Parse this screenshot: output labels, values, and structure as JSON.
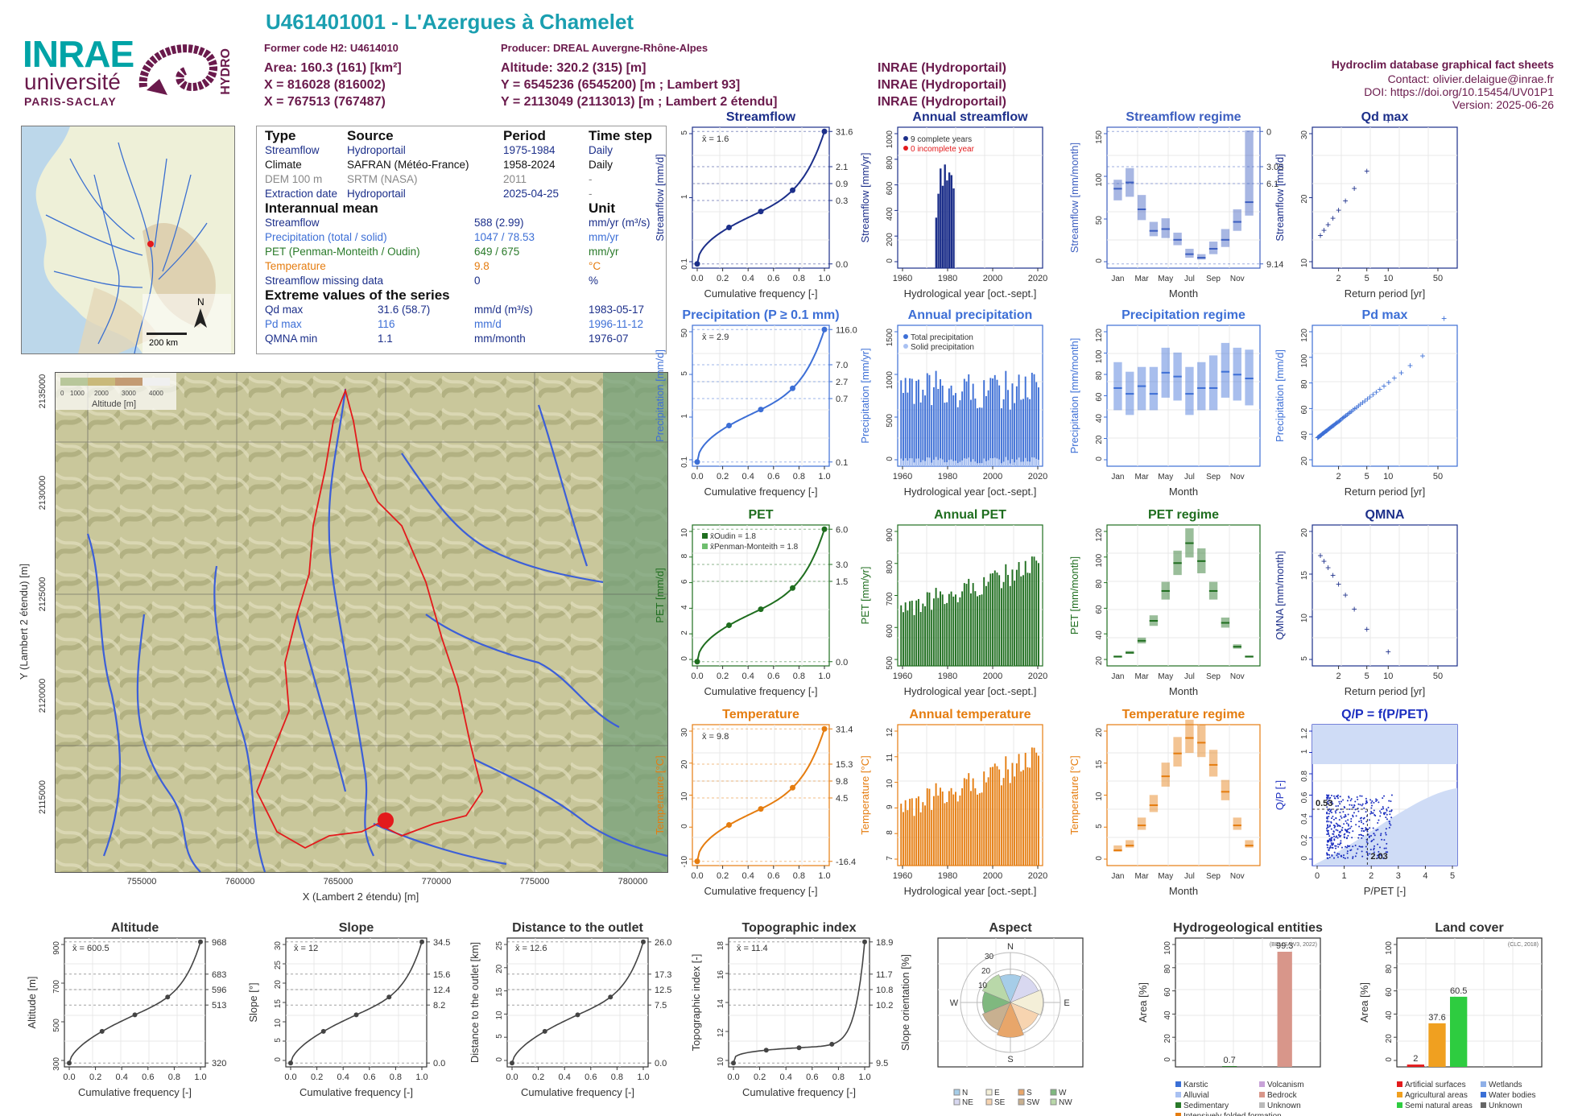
{
  "header": {
    "title": "U461401001 - L'Azergues à Chamelet",
    "former_code": "Former code H2: U4614010",
    "producer": "Producer: DREAL Auvergne-Rhône-Alpes",
    "area": "Area: 160.3 (161) [km²]",
    "altitude": "Altitude: 320.2 (315) [m]",
    "x93": "X = 816028 (816002)",
    "y93": "Y = 6545236 (6545200) [m ; Lambert 93]",
    "x2": "X = 767513 (767487)",
    "y2": "Y = 2113049 (2113013) [m ; Lambert 2 étendu]",
    "src1": "INRAE (Hydroportail)",
    "src2": "INRAE (Hydroportail)",
    "src3": "INRAE (Hydroportail)",
    "db": "Hydroclim database graphical fact sheets",
    "contact": "Contact: olivier.delaigue@inrae.fr",
    "doi": "DOI: https://doi.org/10.15454/UV01P1",
    "version": "Version: 2025-06-26"
  },
  "logos": {
    "inrae": "INRAE",
    "univ": "université",
    "paris": "PARIS-SACLAY",
    "hydro": "HYDRO"
  },
  "info": {
    "h_type": "Type",
    "h_source": "Source",
    "h_period": "Period",
    "h_timestep": "Time step",
    "rows": [
      {
        "type": "Streamflow",
        "source": "Hydroportail",
        "period": "1975-1984",
        "step": "Daily"
      },
      {
        "type": "Climate",
        "source": "SAFRAN (Météo-France)",
        "period": "1958-2024",
        "step": "Daily"
      },
      {
        "type": "DEM 100 m",
        "source": "SRTM (NASA)",
        "period": "2011",
        "step": "-"
      },
      {
        "type": "Extraction date",
        "source": "Hydroportail",
        "period": "2025-04-25",
        "step": "-"
      }
    ],
    "h_mean": "Interannual mean",
    "h_unit": "Unit",
    "mean": [
      {
        "name": "Streamflow",
        "value": "588 (2.99)",
        "unit": "mm/yr (m³/s)"
      },
      {
        "name": "Precipitation (total / solid)",
        "value": "1047 / 78.53",
        "unit": "mm/yr"
      },
      {
        "name": "PET (Penman-Monteith / Oudin)",
        "value": "649 / 675",
        "unit": "mm/yr"
      },
      {
        "name": "Temperature",
        "value": "9.8",
        "unit": "°C"
      },
      {
        "name": "Streamflow missing data",
        "value": "0",
        "unit": "%"
      }
    ],
    "h_extreme": "Extreme values of the series",
    "extreme": [
      {
        "name": "Qd max",
        "value": "31.6 (58.7)",
        "unit": "mm/d (m³/s)",
        "date": "1983-05-17"
      },
      {
        "name": "Pd max",
        "value": "116",
        "unit": "mm/d",
        "date": "1996-11-12"
      },
      {
        "name": "QMNA min",
        "value": "1.1",
        "unit": "mm/month",
        "date": "1976-07"
      }
    ]
  },
  "small_map": {
    "north": "N",
    "scale": "200 km"
  },
  "big_map": {
    "legend_title": "Altitude [m]",
    "legend_ticks": [
      "0",
      "1000",
      "2000",
      "3000",
      "4000"
    ],
    "x_ticks": [
      "755000",
      "760000",
      "765000",
      "770000",
      "775000",
      "780000"
    ],
    "y_ticks": [
      "2115000",
      "2120000",
      "2125000",
      "2130000",
      "2135000"
    ],
    "xlabel": "X (Lambert 2 étendu) [m]",
    "ylabel": "Y (Lambert 2 étendu) [m]"
  },
  "chart_data": [
    {
      "id": "streamflow",
      "type": "line",
      "title": "Streamflow",
      "ylabel": "Streamflow [mm/d]",
      "xlabel": "Cumulative frequency [-]",
      "mean_label": "x̄ = 1.6",
      "right_ticks": [
        "31.6",
        "2.1",
        "0.9",
        "0.3",
        "0.0"
      ],
      "left_ticks": [
        "0.1",
        "1",
        "5"
      ],
      "x_ticks": [
        "0.0",
        "0.2",
        "0.4",
        "0.6",
        "0.8",
        "1.0"
      ],
      "color": "#1c2f8a"
    },
    {
      "id": "annual_streamflow",
      "type": "bar",
      "title": "Annual streamflow",
      "ylabel": "Streamflow [mm/yr]",
      "xlabel": "Hydrological year [oct.-sept.]",
      "legend": [
        "9 complete years",
        "0 incomplete year"
      ],
      "x": [
        1975,
        1976,
        1977,
        1978,
        1979,
        1980,
        1981,
        1982,
        1983
      ],
      "values": [
        380,
        560,
        750,
        620,
        780,
        660,
        720,
        700,
        600
      ],
      "ylim": [
        0,
        1000
      ],
      "y_ticks": [
        "0",
        "200",
        "400",
        "600",
        "800",
        "1000"
      ],
      "x_ticks": [
        "1960",
        "1980",
        "2000",
        "2020"
      ],
      "color": "#1c2f8a"
    },
    {
      "id": "streamflow_regime",
      "type": "box",
      "title": "Streamflow regime",
      "ylabel": "Streamflow [mm/month]",
      "xlabel": "Month",
      "months": [
        "Jan",
        "Mar",
        "May",
        "Jul",
        "Sep",
        "Nov"
      ],
      "median": [
        85,
        92,
        62,
        38,
        40,
        28,
        12,
        8,
        18,
        28,
        48,
        70
      ],
      "q1": [
        72,
        76,
        50,
        32,
        30,
        22,
        8,
        6,
        12,
        20,
        38,
        55
      ],
      "q3": [
        95,
        108,
        78,
        48,
        52,
        36,
        18,
        12,
        26,
        40,
        62,
        150
      ],
      "ylim": [
        0,
        150
      ],
      "y_ticks": [
        "0",
        "50",
        "100",
        "150"
      ],
      "right_ticks": [
        "0",
        "3.05",
        "6.1",
        "9.14"
      ],
      "color": "#3d5fc0"
    },
    {
      "id": "qd_max",
      "type": "scatter",
      "title": "Qd max",
      "ylabel": "Streamflow [mm/d]",
      "xlabel": "Return period [yr]",
      "x_ticks": [
        "2",
        "5",
        "10",
        "50"
      ],
      "y_ticks": [
        "10",
        "20",
        "30"
      ],
      "color": "#1c2f8a"
    },
    {
      "id": "precipitation",
      "type": "line",
      "title": "Precipitation (P ≥ 0.1 mm)",
      "ylabel": "Precipitation [mm/d]",
      "xlabel": "Cumulative frequency [-]",
      "mean_label": "x̄ = 2.9",
      "right_ticks": [
        "116.0",
        "7.0",
        "2.7",
        "0.7",
        "0.1"
      ],
      "left_ticks": [
        "0.1",
        "1",
        "5",
        "50"
      ],
      "x_ticks": [
        "0.0",
        "0.2",
        "0.4",
        "0.6",
        "0.8",
        "1.0"
      ],
      "color": "#3d6fd6"
    },
    {
      "id": "annual_precipitation",
      "type": "bar",
      "title": "Annual precipitation",
      "ylabel": "Precipitation [mm/yr]",
      "xlabel": "Hydrological year [oct.-sept.]",
      "legend": [
        "Total precipitation",
        "Solid precipitation"
      ],
      "ylim": [
        0,
        1500
      ],
      "y_ticks": [
        "0",
        "500",
        "1000",
        "1500"
      ],
      "x_ticks": [
        "1960",
        "1980",
        "2000",
        "2020"
      ],
      "color": "#3d6fd6"
    },
    {
      "id": "precipitation_regime",
      "type": "box",
      "title": "Precipitation regime",
      "ylabel": "Precipitation [mm/month]",
      "xlabel": "Month",
      "months": [
        "Jan",
        "Mar",
        "May",
        "Jul",
        "Sep",
        "Nov"
      ],
      "median": [
        78,
        72,
        80,
        72,
        94,
        90,
        72,
        78,
        78,
        95,
        92,
        88
      ],
      "q1": [
        55,
        50,
        55,
        55,
        68,
        65,
        50,
        55,
        55,
        68,
        65,
        60
      ],
      "q3": [
        105,
        95,
        100,
        100,
        120,
        115,
        100,
        105,
        112,
        125,
        120,
        118
      ],
      "ylim": [
        0,
        140
      ],
      "y_ticks": [
        "0",
        "20",
        "40",
        "60",
        "80",
        "100",
        "120"
      ],
      "color": "#3d6fd6"
    },
    {
      "id": "pd_max",
      "type": "scatter",
      "title": "Pd max",
      "ylabel": "Precipitation [mm/d]",
      "xlabel": "Return period [yr]",
      "x_ticks": [
        "2",
        "5",
        "10",
        "50"
      ],
      "y_ticks": [
        "20",
        "40",
        "60",
        "80",
        "100",
        "120"
      ],
      "color": "#3d6fd6"
    },
    {
      "id": "pet",
      "type": "line",
      "title": "PET",
      "ylabel": "PET [mm/d]",
      "xlabel": "Cumulative frequency [-]",
      "legend": [
        "x̄Oudin = 1.8",
        "x̄Penman-Monteith = 1.8"
      ],
      "right_ticks": [
        "6.0",
        "3.0",
        "1.5",
        "0.0"
      ],
      "left_ticks": [
        "0",
        "2",
        "4",
        "6",
        "8",
        "10"
      ],
      "x_ticks": [
        "0.0",
        "0.2",
        "0.4",
        "0.6",
        "0.8",
        "1.0"
      ],
      "color": "#2a7a2a"
    },
    {
      "id": "annual_pet",
      "type": "bar",
      "title": "Annual PET",
      "ylabel": "PET [mm/yr]",
      "xlabel": "Hydrological year [oct.-sept.]",
      "ylim": [
        450,
        950
      ],
      "y_ticks": [
        "500",
        "600",
        "700",
        "800",
        "900"
      ],
      "x_ticks": [
        "1960",
        "1980",
        "2000",
        "2020"
      ],
      "color": "#1f6e1f"
    },
    {
      "id": "pet_regime",
      "type": "box",
      "title": "PET regime",
      "ylabel": "PET [mm/month]",
      "xlabel": "Month",
      "months": [
        "Jan",
        "Mar",
        "May",
        "Jul",
        "Sep",
        "Nov"
      ],
      "median": [
        6,
        10,
        22,
        42,
        72,
        100,
        120,
        102,
        72,
        40,
        16,
        6
      ],
      "ylim": [
        0,
        135
      ],
      "y_ticks": [
        "20",
        "40",
        "60",
        "80",
        "100",
        "120"
      ],
      "color": "#2a7a2a"
    },
    {
      "id": "qmna",
      "type": "scatter",
      "title": "QMNA",
      "ylabel": "QMNA [mm/month]",
      "xlabel": "Return period [yr]",
      "x_ticks": [
        "2",
        "5",
        "10",
        "50"
      ],
      "y_ticks": [
        "5",
        "10",
        "15",
        "20"
      ],
      "color": "#1c2f8a"
    },
    {
      "id": "temperature",
      "type": "line",
      "title": "Temperature",
      "ylabel": "Temperature [°C]",
      "xlabel": "Cumulative frequency [-]",
      "mean_label": "x̄ = 9.8",
      "right_ticks": [
        "31.4",
        "15.3",
        "9.8",
        "4.5",
        "-16.4"
      ],
      "left_ticks": [
        "-10",
        "0",
        "10",
        "20",
        "30"
      ],
      "x_ticks": [
        "0.0",
        "0.2",
        "0.4",
        "0.6",
        "0.8",
        "1.0"
      ],
      "color": "#e57d10"
    },
    {
      "id": "annual_temperature",
      "type": "bar",
      "title": "Annual temperature",
      "ylabel": "Temperature [°C]",
      "xlabel": "Hydrological year [oct.-sept.]",
      "ylim": [
        7,
        12.5
      ],
      "y_ticks": [
        "7",
        "8",
        "9",
        "10",
        "11",
        "12"
      ],
      "x_ticks": [
        "1960",
        "1980",
        "2000",
        "2020"
      ],
      "color": "#e57d10"
    },
    {
      "id": "temperature_regime",
      "type": "box",
      "title": "Temperature regime",
      "ylabel": "Temperature [°C]",
      "xlabel": "Month",
      "months": [
        "Jan",
        "Mar",
        "May",
        "Jul",
        "Sep",
        "Nov"
      ],
      "median": [
        1.8,
        2.5,
        5.5,
        8.5,
        12.8,
        16.2,
        18.5,
        17.8,
        14.5,
        10.5,
        5.5,
        2.5
      ],
      "ylim": [
        0,
        20
      ],
      "y_ticks": [
        "0",
        "5",
        "10",
        "15",
        "20"
      ],
      "color": "#e57d10"
    },
    {
      "id": "qp",
      "type": "scatter",
      "title": "Q/P = f(P/PET)",
      "ylabel": "Q/P [-]",
      "xlabel": "P/PET [-]",
      "annot_y": "0.53",
      "annot_x": "2.03",
      "x_ticks": [
        "0",
        "1",
        "2",
        "3",
        "4",
        "5"
      ],
      "y_ticks": [
        "0",
        "0.2",
        "0.4",
        "0.6",
        "0.8",
        "1",
        "1.2"
      ],
      "color": "#1c2fc0"
    },
    {
      "id": "altitude",
      "type": "line",
      "title": "Altitude",
      "ylabel": "Altitude [m]",
      "xlabel": "Cumulative frequency [-]",
      "mean_label": "x̄ = 600.5",
      "right_ticks": [
        "968",
        "683",
        "596",
        "513",
        "320"
      ],
      "left_ticks": [
        "300",
        "500",
        "700",
        "900"
      ],
      "x_ticks": [
        "0.0",
        "0.2",
        "0.4",
        "0.6",
        "0.8",
        "1.0"
      ],
      "color": "#444"
    },
    {
      "id": "slope",
      "type": "line",
      "title": "Slope",
      "ylabel": "Slope [°]",
      "xlabel": "Cumulative frequency [-]",
      "mean_label": "x̄ = 12",
      "right_ticks": [
        "34.5",
        "15.6",
        "12.4",
        "8.2",
        "0.0"
      ],
      "left_ticks": [
        "0",
        "5",
        "10",
        "15",
        "20",
        "25",
        "30"
      ],
      "x_ticks": [
        "0.0",
        "0.2",
        "0.4",
        "0.6",
        "0.8",
        "1.0"
      ],
      "color": "#444"
    },
    {
      "id": "distance",
      "type": "line",
      "title": "Distance to the outlet",
      "ylabel": "Distance to the outlet [km]",
      "xlabel": "Cumulative frequency [-]",
      "mean_label": "x̄ = 12.6",
      "right_ticks": [
        "26.0",
        "17.3",
        "12.5",
        "7.5",
        "0.0"
      ],
      "left_ticks": [
        "0",
        "5",
        "10",
        "15",
        "20",
        "25"
      ],
      "x_ticks": [
        "0.0",
        "0.2",
        "0.4",
        "0.6",
        "0.8",
        "1.0"
      ],
      "color": "#444"
    },
    {
      "id": "topo",
      "type": "line",
      "title": "Topographic index",
      "ylabel": "Topographic index [-]",
      "xlabel": "Cumulative frequency [-]",
      "mean_label": "x̄ = 11.4",
      "right_ticks": [
        "18.9",
        "11.7",
        "10.8",
        "10.2",
        "9.5"
      ],
      "left_ticks": [
        "10",
        "12",
        "14",
        "16",
        "18"
      ],
      "x_ticks": [
        "0.0",
        "0.2",
        "0.4",
        "0.6",
        "0.8",
        "1.0"
      ],
      "color": "#444"
    },
    {
      "id": "aspect",
      "type": "pie",
      "title": "Aspect",
      "ylabel": "Slope orientation [%]",
      "rings": [
        "10",
        "20",
        "30"
      ],
      "dirs": [
        "N",
        "E",
        "S",
        "W"
      ],
      "legend": [
        "N",
        "E",
        "S",
        "W",
        "NE",
        "SE",
        "SW",
        "NW"
      ],
      "values": [
        12,
        13,
        14,
        13,
        15,
        13,
        12,
        13
      ]
    },
    {
      "id": "hydrogeo",
      "type": "bar",
      "title": "Hydrogeological entities",
      "ylabel": "Area [%]",
      "source": "(BDLISA V3, 2022)",
      "categories": [
        "Karstic",
        "Alluvial",
        "Sedimentary",
        "Intensively folded formation",
        "Volcanism",
        "Bedrock",
        "Unknown"
      ],
      "values": [
        0,
        0,
        0.7,
        0,
        0,
        99.3,
        0
      ],
      "labels": [
        "0.7",
        "99.3"
      ],
      "y_ticks": [
        "0",
        "20",
        "40",
        "60",
        "80",
        "100"
      ]
    },
    {
      "id": "landcover",
      "type": "bar",
      "title": "Land cover",
      "ylabel": "Area [%]",
      "source": "(CLC, 2018)",
      "categories": [
        "Artificial surfaces",
        "Agricultural areas",
        "Semi natural areas",
        "Wetlands",
        "Water bodies",
        "Unknown"
      ],
      "values": [
        2,
        37.6,
        60.5,
        0,
        0,
        0
      ],
      "labels": [
        "2",
        "37.6",
        "60.5"
      ],
      "y_ticks": [
        "0",
        "20",
        "40",
        "60",
        "80",
        "100"
      ]
    }
  ]
}
